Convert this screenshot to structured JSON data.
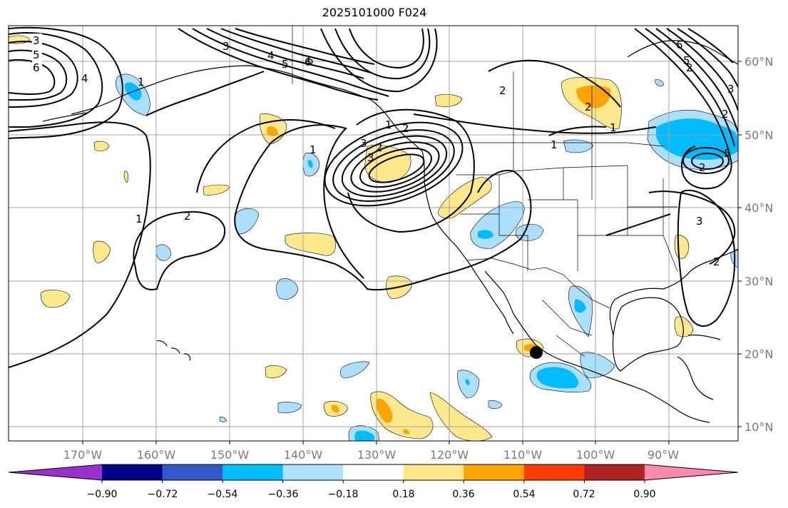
{
  "title": "2025101000 F024",
  "map": {
    "lat_labels": [
      "60°N",
      "50°N",
      "40°N",
      "30°N",
      "20°N",
      "10°N"
    ],
    "lon_labels": [
      "170°W",
      "160°W",
      "150°W",
      "140°W",
      "130°W",
      "120°W",
      "110°W",
      "100°W",
      "90°W"
    ],
    "contour_labels": [
      "3",
      "5",
      "6",
      "4",
      "1",
      "2",
      "3",
      "4",
      "5",
      "6",
      "1",
      "2",
      "3",
      "1",
      "2",
      "1",
      "2",
      "3",
      "5",
      "6",
      "1",
      "2",
      "3",
      "1",
      "2",
      "6",
      "5",
      "2",
      "2",
      "3",
      "2"
    ],
    "colors": {
      "land_line": "#000000",
      "grid": "#a0a0a0",
      "light_yellow": "#fde98c",
      "orange": "#fea300",
      "light_blue": "#acdffc",
      "cyan": "#00bcfc"
    }
  },
  "colorbar": {
    "ticks": [
      "−0.90",
      "−0.72",
      "−0.54",
      "−0.36",
      "−0.18",
      "0.18",
      "0.36",
      "0.54",
      "0.72",
      "0.90"
    ],
    "colors": [
      "#9932cc",
      "#00008b",
      "#3158c9",
      "#00bfff",
      "#afe0ff",
      "#ffffff",
      "#ffe88a",
      "#ffa500",
      "#ff3c00",
      "#b22222",
      "#ff89ad"
    ]
  }
}
